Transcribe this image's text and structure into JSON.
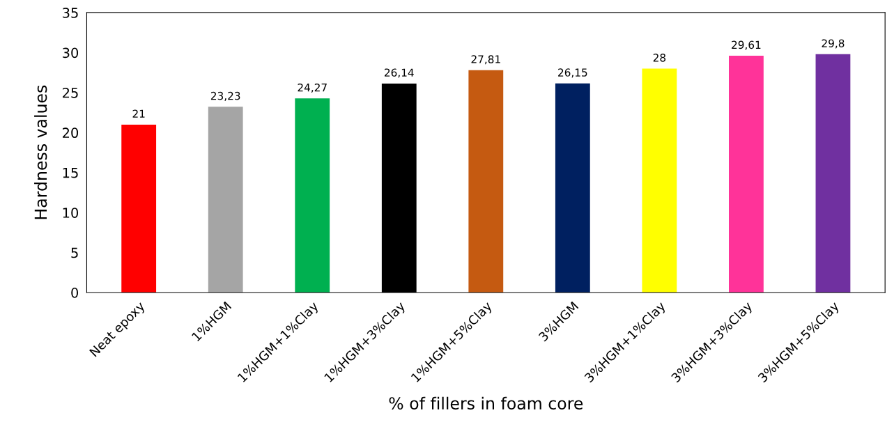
{
  "chart_data": {
    "type": "bar",
    "xlabel": "% of fillers in foam core",
    "ylabel": "Hardness values",
    "categories": [
      "Neat epoxy",
      "1%HGM",
      "1%HGM+1%Clay",
      "1%HGM+3%Clay",
      "1%HGM+5%Clay",
      "3%HGM",
      "3%HGM+1%Clay",
      "3%HGM+3%Clay",
      "3%HGM+5%Clay"
    ],
    "values": [
      21,
      23.23,
      24.27,
      26.14,
      27.81,
      26.15,
      28,
      29.61,
      29.8
    ],
    "value_labels": [
      "21",
      "23,23",
      "24,27",
      "26,14",
      "27,81",
      "26,15",
      "28",
      "29,61",
      "29,8"
    ],
    "colors": [
      "#ff0000",
      "#a5a5a5",
      "#00b050",
      "#000000",
      "#c55a11",
      "#002060",
      "#ffff00",
      "#ff3399",
      "#7030a0"
    ],
    "ylim": [
      0,
      35
    ],
    "yticks": [
      0,
      5,
      10,
      15,
      20,
      25,
      30,
      35
    ],
    "grid": false,
    "legend": false
  }
}
